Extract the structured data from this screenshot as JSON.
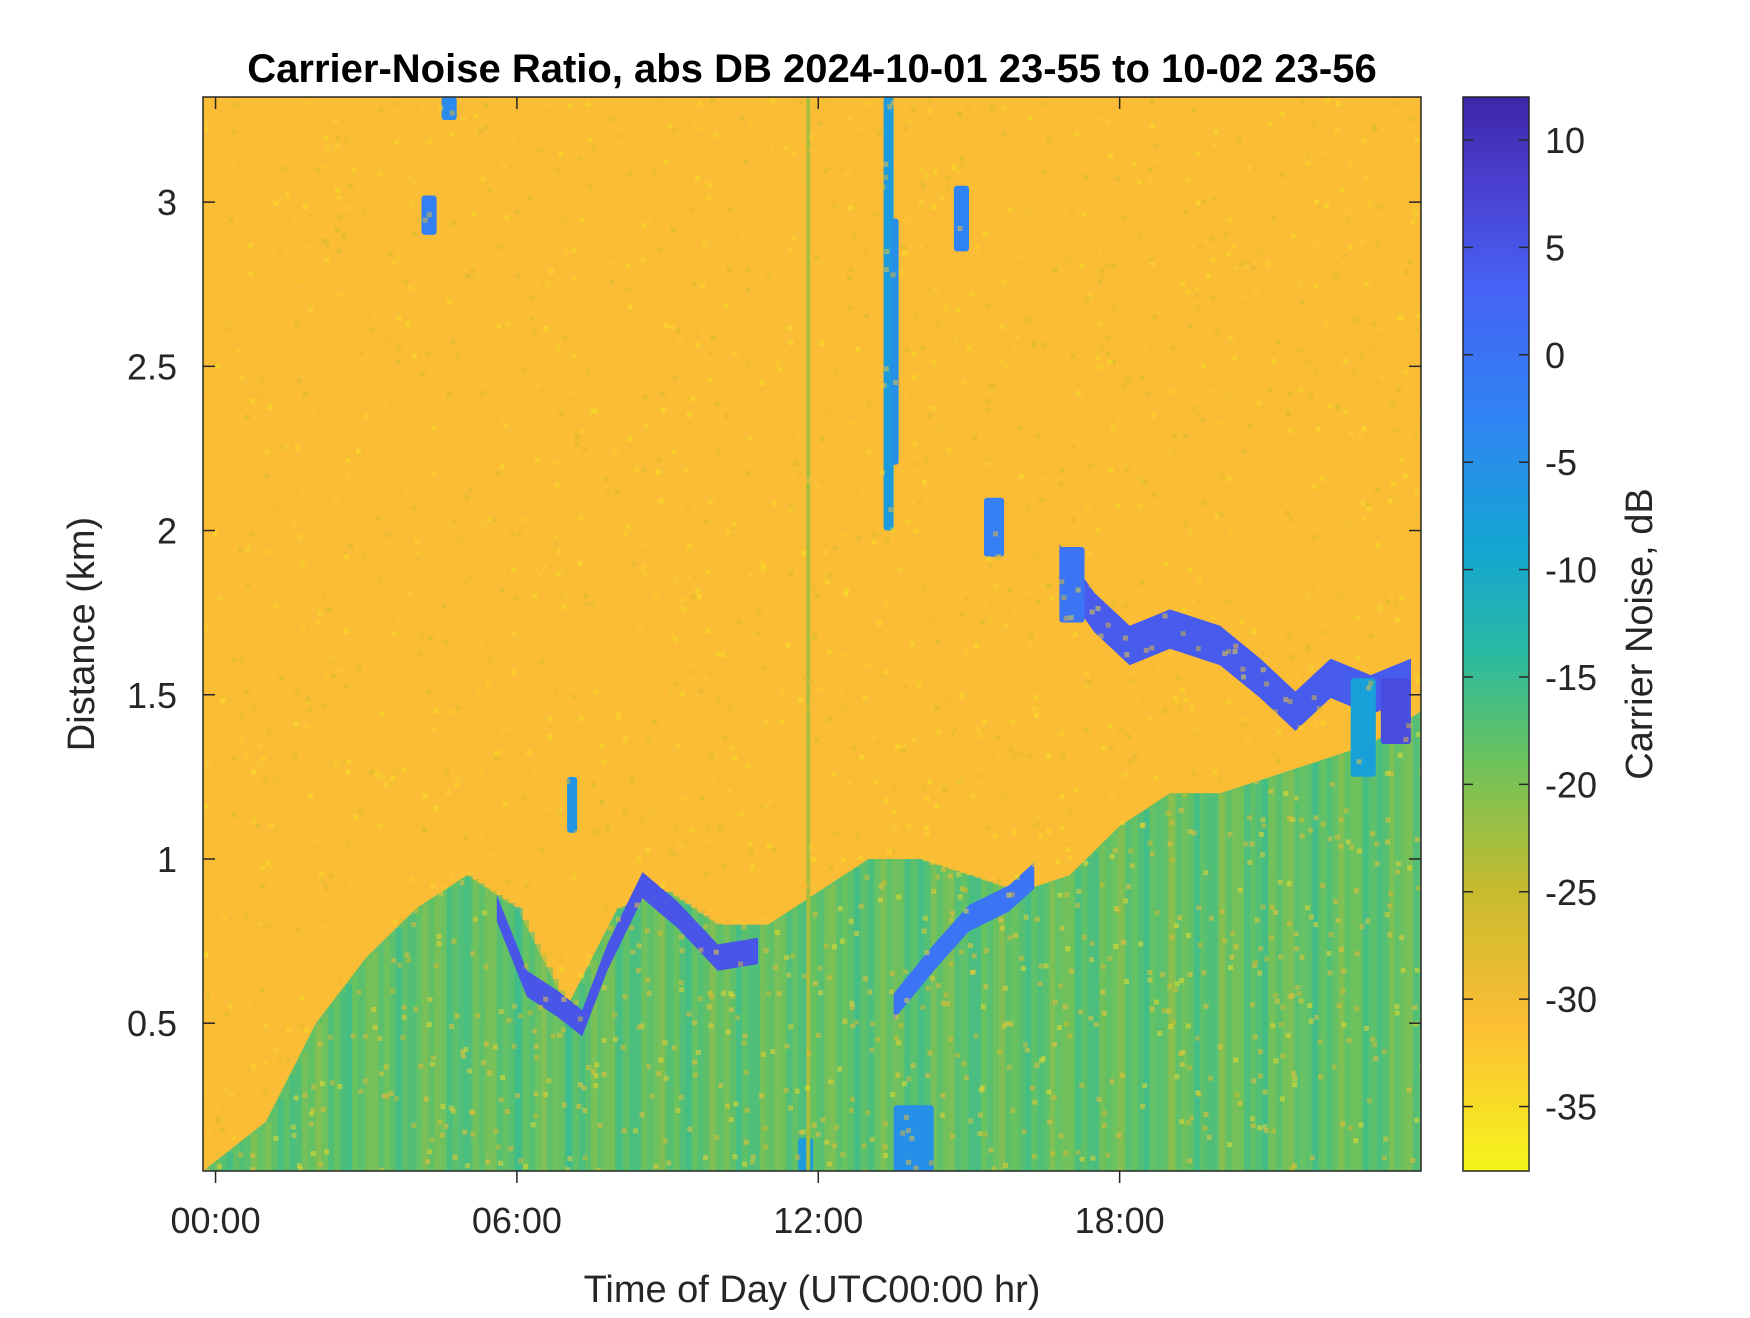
{
  "chart_data": {
    "type": "heatmap",
    "title": "Carrier-Noise Ratio, abs DB 2024-10-01 23-55 to 10-02 23-56",
    "xlabel": "Time of Day (UTC00:00 hr)",
    "ylabel": "Distance (km)",
    "colorbar_label": "Carrier Noise, dB",
    "x_unit": "hour",
    "xlim": [
      -0.25,
      24.0
    ],
    "ylim": [
      0.05,
      3.32
    ],
    "clim": [
      -38,
      12
    ],
    "x_ticks": [
      {
        "value": 0,
        "label": "00:00"
      },
      {
        "value": 6,
        "label": "06:00"
      },
      {
        "value": 12,
        "label": "12:00"
      },
      {
        "value": 18,
        "label": "18:00"
      }
    ],
    "y_ticks": [
      {
        "value": 0.5,
        "label": "0.5"
      },
      {
        "value": 1,
        "label": "1"
      },
      {
        "value": 1.5,
        "label": "1.5"
      },
      {
        "value": 2,
        "label": "2"
      },
      {
        "value": 2.5,
        "label": "2.5"
      },
      {
        "value": 3,
        "label": "3"
      }
    ],
    "colorbar_ticks": [
      {
        "value": 10,
        "label": "10"
      },
      {
        "value": 5,
        "label": "5"
      },
      {
        "value": 0,
        "label": "0"
      },
      {
        "value": -5,
        "label": "-5"
      },
      {
        "value": -10,
        "label": "-10"
      },
      {
        "value": -15,
        "label": "-15"
      },
      {
        "value": -20,
        "label": "-20"
      },
      {
        "value": -25,
        "label": "-25"
      },
      {
        "value": -30,
        "label": "-30"
      },
      {
        "value": -35,
        "label": "-35"
      }
    ],
    "colormap": "parula-reversed",
    "colormap_stops": [
      {
        "value": -38,
        "color": "#f5f51c"
      },
      {
        "value": -31,
        "color": "#fbbd35"
      },
      {
        "value": -25,
        "color": "#c8bb2e"
      },
      {
        "value": -19,
        "color": "#6ec25a"
      },
      {
        "value": -14,
        "color": "#2bbaa0"
      },
      {
        "value": -9,
        "color": "#13a6d2"
      },
      {
        "value": -3,
        "color": "#2f84f3"
      },
      {
        "value": 3,
        "color": "#4663f5"
      },
      {
        "value": 8,
        "color": "#4a3fcf"
      },
      {
        "value": 12,
        "color": "#3e26a8"
      }
    ],
    "background_cnr": -31,
    "boundary_layer_top": {
      "x": [
        -0.25,
        1,
        2,
        3,
        4,
        5,
        6,
        7,
        8,
        9,
        10,
        11,
        12,
        13,
        14,
        15,
        16,
        17,
        18,
        19,
        20,
        21,
        22,
        23,
        24
      ],
      "y": [
        0.05,
        0.2,
        0.5,
        0.7,
        0.85,
        0.95,
        0.85,
        0.55,
        0.85,
        0.9,
        0.8,
        0.8,
        0.9,
        1.0,
        1.0,
        0.95,
        0.9,
        0.95,
        1.1,
        1.2,
        1.2,
        1.25,
        1.3,
        1.35,
        1.45
      ]
    },
    "boundary_layer_cnr": -18,
    "cloud_layers": [
      {
        "x": [
          16.8,
          17.5,
          18.2,
          19.0,
          20.0,
          20.8,
          21.5,
          22.2,
          23.0,
          23.8
        ],
        "y": [
          1.9,
          1.75,
          1.65,
          1.7,
          1.65,
          1.55,
          1.45,
          1.55,
          1.5,
          1.55
        ],
        "thickness_km": 0.12,
        "cnr": 4
      },
      {
        "x": [
          5.6,
          6.2,
          6.8,
          7.3,
          7.8,
          8.5,
          9.2,
          10.0,
          10.8
        ],
        "y": [
          0.85,
          0.62,
          0.56,
          0.5,
          0.7,
          0.92,
          0.83,
          0.7,
          0.72
        ],
        "thickness_km": 0.08,
        "cnr": 5
      },
      {
        "x": [
          13.5,
          14.3,
          15.0,
          15.8,
          16.3
        ],
        "y": [
          0.55,
          0.7,
          0.82,
          0.88,
          0.95
        ],
        "thickness_km": 0.08,
        "cnr": 0
      }
    ],
    "cloud_patches": [
      {
        "x": [
          4.1,
          4.4
        ],
        "y": [
          2.9,
          3.02
        ],
        "cnr": -2
      },
      {
        "x": [
          4.5,
          4.8
        ],
        "y": [
          3.25,
          3.32
        ],
        "cnr": -4
      },
      {
        "x": [
          13.3,
          13.5
        ],
        "y": [
          2.0,
          3.32
        ],
        "cnr": -7
      },
      {
        "x": [
          13.45,
          13.6
        ],
        "y": [
          2.2,
          2.95
        ],
        "cnr": -5
      },
      {
        "x": [
          14.7,
          15.0
        ],
        "y": [
          2.85,
          3.05
        ],
        "cnr": -3
      },
      {
        "x": [
          15.3,
          15.7
        ],
        "y": [
          1.92,
          2.1
        ],
        "cnr": -2
      },
      {
        "x": [
          16.8,
          17.3
        ],
        "y": [
          1.72,
          1.95
        ],
        "cnr": 0
      },
      {
        "x": [
          22.6,
          23.1
        ],
        "y": [
          1.25,
          1.55
        ],
        "cnr": -8
      },
      {
        "x": [
          23.2,
          23.8
        ],
        "y": [
          1.35,
          1.55
        ],
        "cnr": 6
      },
      {
        "x": [
          13.5,
          14.3
        ],
        "y": [
          0.05,
          0.25
        ],
        "cnr": -5
      },
      {
        "x": [
          11.6,
          11.9
        ],
        "y": [
          0.05,
          0.15
        ],
        "cnr": -7
      },
      {
        "x": [
          7.0,
          7.2
        ],
        "y": [
          1.08,
          1.25
        ],
        "cnr": -6
      }
    ],
    "vertical_streaks": [
      {
        "x": 11.8,
        "y": [
          0.05,
          3.32
        ],
        "cnr": -23
      }
    ]
  }
}
